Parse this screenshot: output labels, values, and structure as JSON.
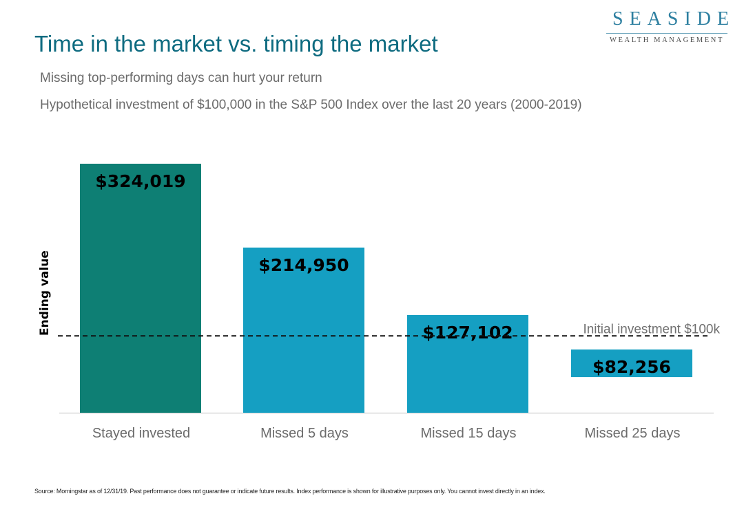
{
  "brand": {
    "name": "SEASIDE",
    "tagline": "WEALTH MANAGEMENT",
    "color": "#2d7fa0"
  },
  "header": {
    "title": "Time in the market vs. timing the market",
    "subtitle": "Missing top-performing days can hurt your return",
    "description": "Hypothetical investment of $100,000 in the S&P 500 Index over the last 20 years (2000-2019)"
  },
  "chart_data": {
    "type": "bar",
    "categories": [
      "Stayed invested",
      "Missed 5 days",
      "Missed 15 days",
      "Missed 25 days"
    ],
    "values": [
      324019,
      214950,
      127102,
      82256
    ],
    "data_labels": [
      "$324,019",
      "$214,950",
      "$127,102",
      "$82,256"
    ],
    "bar_colors": [
      "#0e7f74",
      "#159fc2",
      "#159fc2",
      "#159fc2"
    ],
    "ylabel": "Ending value",
    "xlabel": "",
    "reference_line": {
      "value": 100000,
      "label": "Initial investment $100k",
      "style": "dashed"
    },
    "grid": false,
    "ylim": [
      0,
      100000
    ]
  },
  "footer": {
    "source": "Source: Morningstar as of 12/31/19. Past performance does not guarantee or indicate future results. Index performance is shown for illustrative purposes only. You cannot invest directly in an index."
  }
}
